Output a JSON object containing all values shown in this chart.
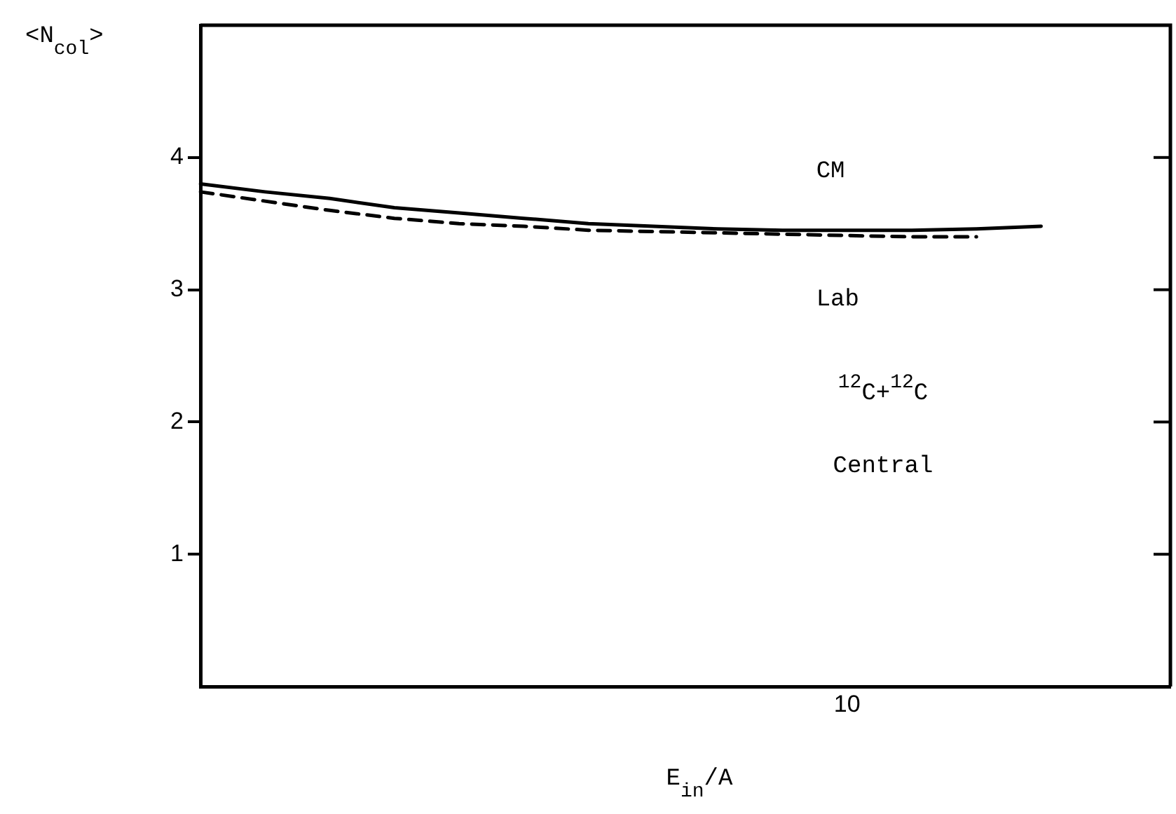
{
  "chart_data": {
    "type": "line",
    "xlabel": "E$_{in}$/A",
    "ylabel": "<N$_{col}$>",
    "annotations": [
      "$^{12}$C+$^{12}$C",
      "Central"
    ],
    "grid": false,
    "legend": false,
    "marker": "none",
    "categories": [
      null,
      null,
      null,
      null,
      null,
      null,
      null,
      null,
      null,
      null,
      "10",
      null,
      null,
      null,
      null,
      null
    ],
    "ylim": [
      0,
      5
    ],
    "yticks": [
      1,
      2,
      3,
      4
    ],
    "series": [
      {
        "name": "CM",
        "color": "#000000",
        "line_style": "solid",
        "values": [
          3.8,
          3.74,
          3.69,
          3.62,
          3.58,
          3.54,
          3.5,
          3.48,
          3.46,
          3.45,
          3.45,
          3.45,
          3.46,
          3.48,
          null,
          null
        ]
      },
      {
        "name": "Lab",
        "color": "#000000",
        "line_style": "dashed",
        "values": [
          3.74,
          3.67,
          3.6,
          3.54,
          3.5,
          3.48,
          3.45,
          3.44,
          3.43,
          3.42,
          3.41,
          3.4,
          3.4,
          null,
          null,
          null
        ]
      }
    ]
  }
}
